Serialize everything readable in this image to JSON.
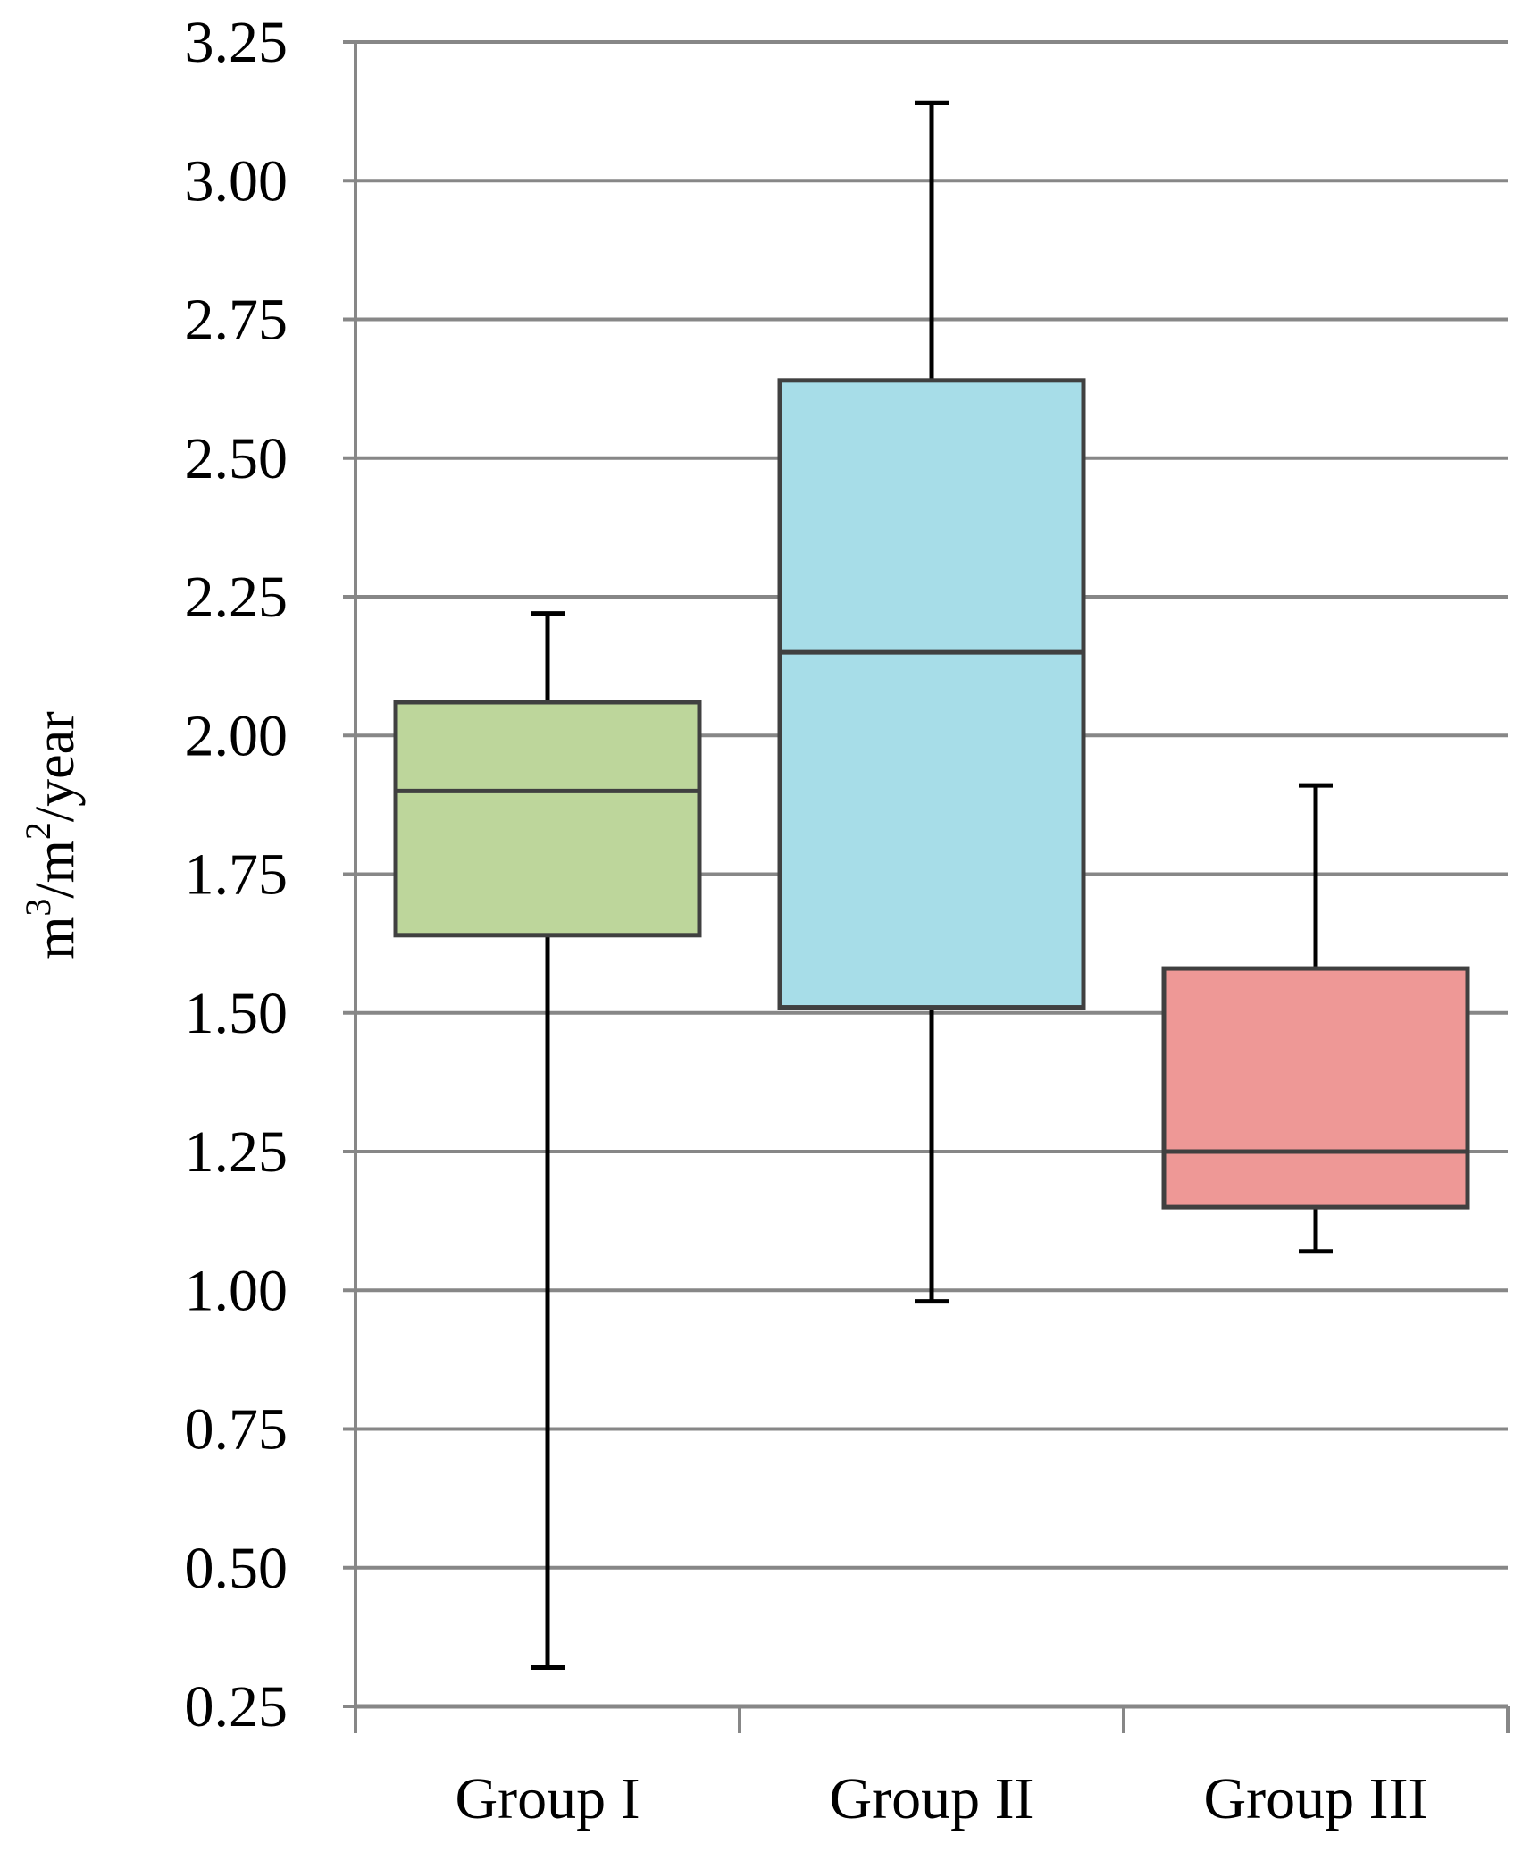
{
  "chart_data": {
    "type": "box",
    "ylabel_parts": {
      "base1": "m",
      "exp1": "3",
      "mid": "/m",
      "exp2": "2",
      "tail": "/year"
    },
    "ylim": [
      0.25,
      3.25
    ],
    "yticks": [
      "0.25",
      "0.50",
      "0.75",
      "1.00",
      "1.25",
      "1.50",
      "1.75",
      "2.00",
      "2.25",
      "2.50",
      "2.75",
      "3.00",
      "3.25"
    ],
    "grid": true,
    "categories": [
      "Group I",
      "Group II",
      "Group III"
    ],
    "boxes": [
      {
        "name": "Group I",
        "min": 0.32,
        "q1": 1.64,
        "median": 1.9,
        "q3": 2.06,
        "max": 2.22,
        "color": "#bdd69b"
      },
      {
        "name": "Group II",
        "min": 0.98,
        "q1": 1.51,
        "median": 2.15,
        "q3": 2.64,
        "max": 3.14,
        "color": "#a7dde8"
      },
      {
        "name": "Group III",
        "min": 1.07,
        "q1": 1.15,
        "median": 1.25,
        "q3": 1.58,
        "max": 1.91,
        "color": "#ee9896"
      }
    ],
    "colors": {
      "grid": "#878787",
      "box_edge": "#404040",
      "whisker": "#000000"
    }
  }
}
